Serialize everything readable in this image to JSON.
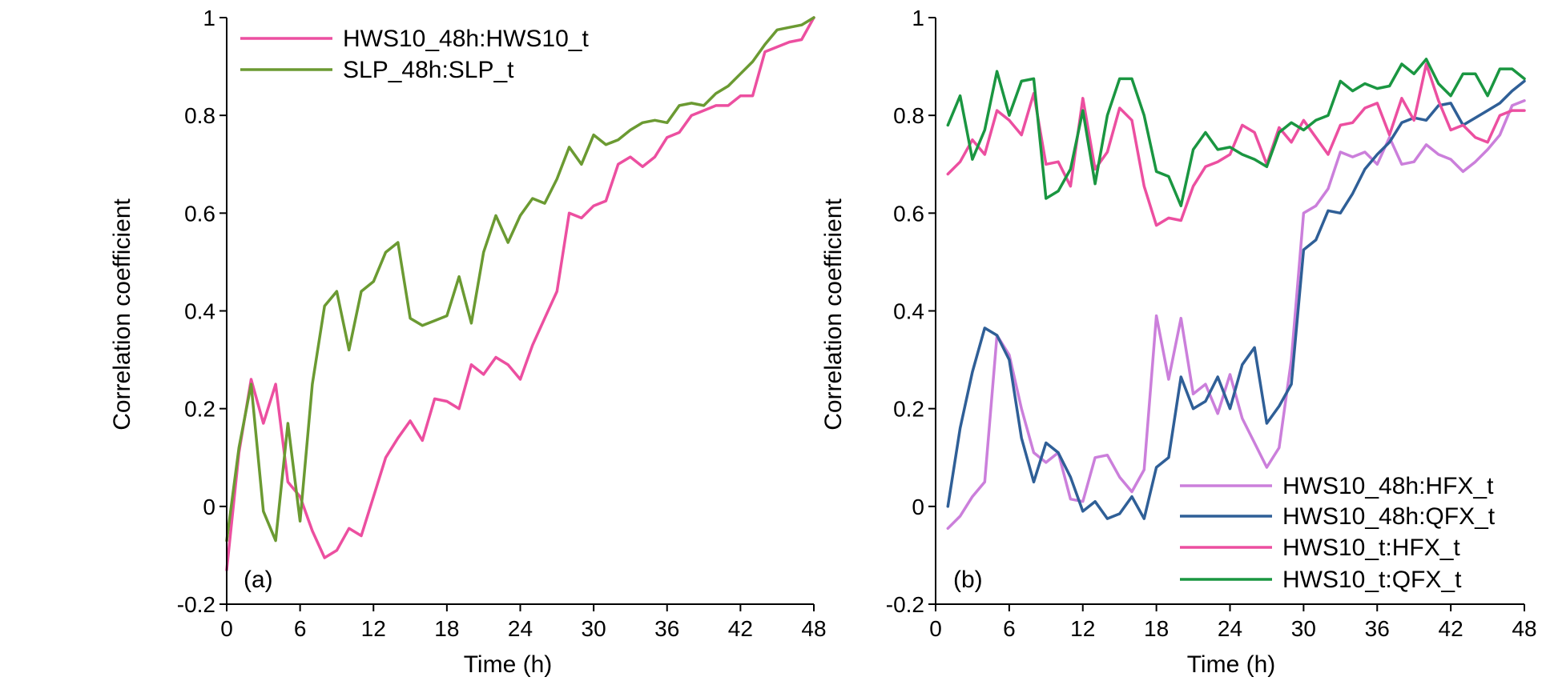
{
  "chart_data": [
    {
      "type": "line",
      "panel_label": "(a)",
      "xlabel": "Time (h)",
      "ylabel": "Correlation coefficient",
      "xlim": [
        0,
        48
      ],
      "ylim": [
        -0.2,
        1
      ],
      "xticks": [
        0,
        6,
        12,
        18,
        24,
        30,
        36,
        42,
        48
      ],
      "yticks": [
        -0.2,
        0,
        0.2,
        0.4,
        0.6,
        0.8,
        1
      ],
      "ytick_labels": [
        "-0.2",
        "0",
        "0.2",
        "0.4",
        "0.6",
        "0.8",
        "1"
      ],
      "legend_position": "top-left",
      "grid": false,
      "x": [
        0,
        1,
        2,
        3,
        4,
        5,
        6,
        7,
        8,
        9,
        10,
        11,
        12,
        13,
        14,
        15,
        16,
        17,
        18,
        19,
        20,
        21,
        22,
        23,
        24,
        25,
        26,
        27,
        28,
        29,
        30,
        31,
        32,
        33,
        34,
        35,
        36,
        37,
        38,
        39,
        40,
        41,
        42,
        43,
        44,
        45,
        46,
        47,
        48
      ],
      "series": [
        {
          "name": "HWS10_48h:HWS10_t",
          "color": "#ec4fa0",
          "values": [
            -0.13,
            0.11,
            0.26,
            0.17,
            0.25,
            0.05,
            0.02,
            -0.05,
            -0.105,
            -0.09,
            -0.045,
            -0.06,
            0.02,
            0.1,
            0.14,
            0.175,
            0.135,
            0.22,
            0.215,
            0.2,
            0.29,
            0.27,
            0.305,
            0.29,
            0.26,
            0.33,
            0.385,
            0.44,
            0.6,
            0.59,
            0.615,
            0.625,
            0.7,
            0.715,
            0.695,
            0.715,
            0.755,
            0.765,
            0.8,
            0.81,
            0.82,
            0.82,
            0.84,
            0.84,
            0.93,
            0.94,
            0.95,
            0.955,
            1.0
          ]
        },
        {
          "name": "SLP_48h:SLP_t",
          "color": "#6b9a32",
          "values": [
            -0.07,
            0.12,
            0.25,
            -0.01,
            -0.07,
            0.17,
            -0.03,
            0.25,
            0.41,
            0.44,
            0.32,
            0.44,
            0.46,
            0.52,
            0.54,
            0.385,
            0.37,
            0.38,
            0.39,
            0.47,
            0.375,
            0.52,
            0.595,
            0.54,
            0.595,
            0.63,
            0.62,
            0.67,
            0.735,
            0.7,
            0.76,
            0.74,
            0.75,
            0.77,
            0.785,
            0.79,
            0.785,
            0.82,
            0.825,
            0.82,
            0.845,
            0.86,
            0.885,
            0.91,
            0.945,
            0.975,
            0.98,
            0.985,
            1.0
          ]
        }
      ]
    },
    {
      "type": "line",
      "panel_label": "(b)",
      "xlabel": "Time (h)",
      "ylabel": "Correlation coefficient",
      "xlim": [
        0,
        48
      ],
      "ylim": [
        -0.2,
        1
      ],
      "xticks": [
        0,
        6,
        12,
        18,
        24,
        30,
        36,
        42,
        48
      ],
      "yticks": [
        -0.2,
        0,
        0.2,
        0.4,
        0.6,
        0.8,
        1
      ],
      "ytick_labels": [
        "-0.2",
        "0",
        "0.2",
        "0.4",
        "0.6",
        "0.8",
        "1"
      ],
      "legend_position": "bottom-right",
      "grid": false,
      "x": [
        1,
        2,
        3,
        4,
        5,
        6,
        7,
        8,
        9,
        10,
        11,
        12,
        13,
        14,
        15,
        16,
        17,
        18,
        19,
        20,
        21,
        22,
        23,
        24,
        25,
        26,
        27,
        28,
        29,
        30,
        31,
        32,
        33,
        34,
        35,
        36,
        37,
        38,
        39,
        40,
        41,
        42,
        43,
        44,
        45,
        46,
        47,
        48
      ],
      "series": [
        {
          "name": "HWS10_48h:HFX_t",
          "color": "#cb7fdb",
          "values": [
            -0.045,
            -0.02,
            0.02,
            0.05,
            0.35,
            0.31,
            0.2,
            0.11,
            0.09,
            0.11,
            0.015,
            0.01,
            0.1,
            0.105,
            0.06,
            0.03,
            0.075,
            0.39,
            0.26,
            0.385,
            0.23,
            0.25,
            0.19,
            0.27,
            0.18,
            0.13,
            0.08,
            0.12,
            0.3,
            0.6,
            0.615,
            0.65,
            0.725,
            0.715,
            0.725,
            0.7,
            0.755,
            0.7,
            0.705,
            0.74,
            0.72,
            0.71,
            0.685,
            0.705,
            0.73,
            0.76,
            0.82,
            0.83
          ]
        },
        {
          "name": "HWS10_48h:QFX_t",
          "color": "#2f5f97",
          "values": [
            0.0,
            0.16,
            0.275,
            0.365,
            0.35,
            0.3,
            0.14,
            0.05,
            0.13,
            0.11,
            0.06,
            -0.01,
            0.01,
            -0.025,
            -0.015,
            0.02,
            -0.025,
            0.08,
            0.1,
            0.265,
            0.2,
            0.215,
            0.265,
            0.2,
            0.29,
            0.325,
            0.17,
            0.205,
            0.25,
            0.525,
            0.545,
            0.605,
            0.6,
            0.64,
            0.69,
            0.72,
            0.745,
            0.785,
            0.795,
            0.79,
            0.82,
            0.825,
            0.78,
            0.795,
            0.81,
            0.825,
            0.85,
            0.87
          ]
        },
        {
          "name": "HWS10_t:HFX_t",
          "color": "#ec4fa0",
          "values": [
            0.68,
            0.705,
            0.75,
            0.72,
            0.81,
            0.79,
            0.76,
            0.845,
            0.7,
            0.705,
            0.655,
            0.835,
            0.69,
            0.725,
            0.815,
            0.79,
            0.655,
            0.575,
            0.59,
            0.585,
            0.655,
            0.695,
            0.705,
            0.72,
            0.78,
            0.765,
            0.7,
            0.775,
            0.745,
            0.79,
            0.755,
            0.72,
            0.78,
            0.785,
            0.815,
            0.825,
            0.76,
            0.835,
            0.79,
            0.905,
            0.83,
            0.77,
            0.78,
            0.755,
            0.745,
            0.8,
            0.81,
            0.81
          ]
        },
        {
          "name": "HWS10_t:QFX_t",
          "color": "#1a9641",
          "values": [
            0.78,
            0.84,
            0.71,
            0.77,
            0.89,
            0.8,
            0.87,
            0.875,
            0.63,
            0.645,
            0.69,
            0.81,
            0.66,
            0.8,
            0.875,
            0.875,
            0.8,
            0.685,
            0.675,
            0.615,
            0.73,
            0.765,
            0.73,
            0.735,
            0.72,
            0.71,
            0.695,
            0.765,
            0.785,
            0.77,
            0.79,
            0.8,
            0.87,
            0.85,
            0.865,
            0.855,
            0.86,
            0.905,
            0.885,
            0.915,
            0.865,
            0.84,
            0.885,
            0.885,
            0.84,
            0.895,
            0.895,
            0.875
          ]
        }
      ]
    }
  ]
}
